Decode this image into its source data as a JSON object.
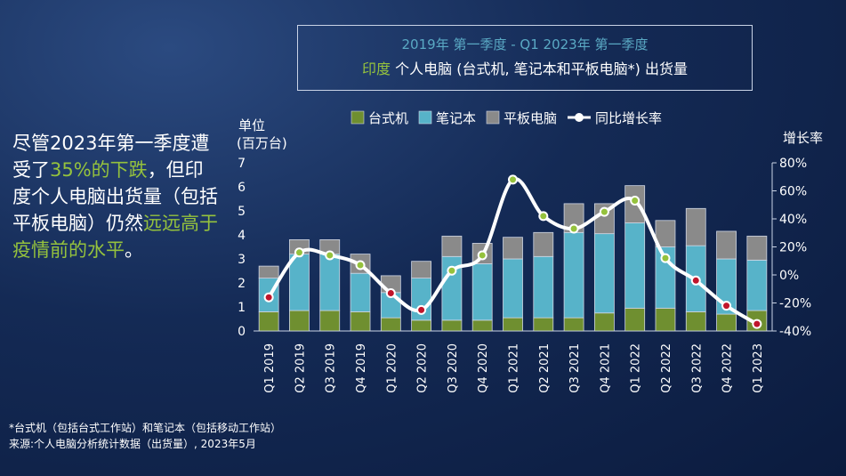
{
  "title": {
    "line1": "2019年 第一季度 - Q1 2023年 第一季度",
    "line2_highlight": "印度",
    "line2_rest": " 个人电脑 (台式机, 笔记本和平板电脑*) 出货量"
  },
  "side_text": {
    "p1": "尽管2023年第一季度遭受了",
    "p2": "35%的下跌",
    "p3": "，但印度个人电脑出货量（包括平板电脑）仍然",
    "p4": "远远高于疫情前的水平",
    "p5": "。"
  },
  "footnote": {
    "line1": "*台式机（包括台式工作站）和笔记本（包括移动工作站）",
    "line2": "来源:个人电脑分析统计数据（出货量）, 2023年5月"
  },
  "colors": {
    "desktop": "#6f8f30",
    "notebook": "#57b3c9",
    "tablet": "#8a8a8a",
    "line": "#ffffff",
    "marker_positive": "#95c23d",
    "marker_negative": "#c0152b"
  },
  "chart_data": {
    "type": "bar",
    "stacked": true,
    "y_label_line1": "单位",
    "y_label_line2": "(百万台)",
    "y2_label": "增长率",
    "ylim": [
      0,
      7
    ],
    "y_ticks": [
      "0",
      "1",
      "2",
      "3",
      "4",
      "5",
      "6",
      "7"
    ],
    "y2lim": [
      -40,
      80
    ],
    "y2_ticks": [
      "-40%",
      "-20%",
      "0%",
      "20%",
      "40%",
      "60%",
      "80%"
    ],
    "categories": [
      "Q1 2019",
      "Q2 2019",
      "Q3 2019",
      "Q4 2019",
      "Q1 2020",
      "Q2 2020",
      "Q3 2020",
      "Q4 2020",
      "Q1 2021",
      "Q2 2021",
      "Q3 2021",
      "Q4 2021",
      "Q1 2022",
      "Q2 2022",
      "Q3 2022",
      "Q4 2022",
      "Q1 2023"
    ],
    "series": [
      {
        "name": "台式机",
        "values": [
          0.8,
          0.85,
          0.85,
          0.8,
          0.55,
          0.45,
          0.45,
          0.45,
          0.55,
          0.55,
          0.55,
          0.75,
          0.95,
          0.95,
          0.8,
          0.7,
          0.85
        ]
      },
      {
        "name": "笔记本",
        "values": [
          1.4,
          2.35,
          2.35,
          1.6,
          1.05,
          1.75,
          2.65,
          2.35,
          2.45,
          2.55,
          3.55,
          3.3,
          3.55,
          2.55,
          2.75,
          2.3,
          2.1
        ]
      },
      {
        "name": "平板电脑",
        "values": [
          0.5,
          0.6,
          0.6,
          0.8,
          0.7,
          0.7,
          0.85,
          0.85,
          0.9,
          1.0,
          1.2,
          1.25,
          1.55,
          1.1,
          1.55,
          1.15,
          1.0
        ]
      }
    ],
    "line_series": {
      "name": "同比增长率",
      "values": [
        -16,
        16,
        14,
        7,
        -13,
        -25,
        3,
        14,
        68,
        42,
        33,
        45,
        53,
        12,
        -4,
        -22,
        -35
      ]
    },
    "legend_position": "top"
  }
}
